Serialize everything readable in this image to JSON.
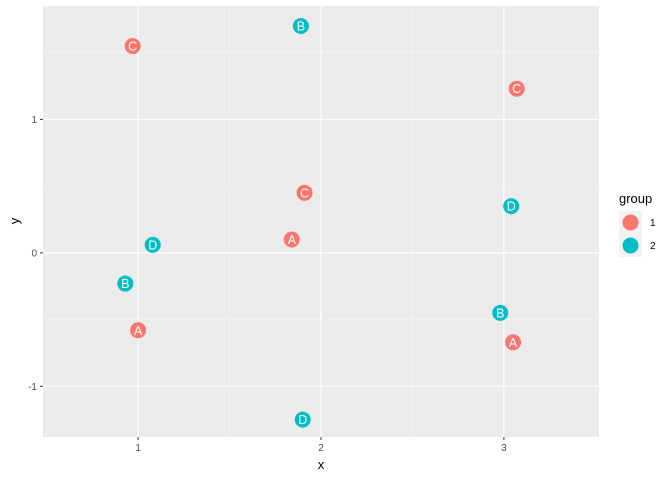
{
  "chart_data": {
    "type": "scatter",
    "xlabel": "x",
    "ylabel": "y",
    "xlim": [
      0.48,
      3.52
    ],
    "ylim": [
      -1.38,
      1.85
    ],
    "x_ticks": [
      1,
      2,
      3
    ],
    "x_tick_labels": [
      "1",
      "2",
      "3"
    ],
    "y_ticks": [
      -1,
      0,
      1
    ],
    "y_tick_labels": [
      "-1",
      "0",
      "1"
    ],
    "grid": true,
    "background": "#ebebeb",
    "legend": {
      "title": "group",
      "placement": "right",
      "entries": [
        {
          "label": "1",
          "color": "#f8766d"
        },
        {
          "label": "2",
          "color": "#00bfc4"
        }
      ]
    },
    "series": [
      {
        "name": "1",
        "color": "#f8766d",
        "points": [
          {
            "x": 0.97,
            "y": 1.55,
            "label": "C"
          },
          {
            "x": 3.07,
            "y": 1.23,
            "label": "C"
          },
          {
            "x": 1.91,
            "y": 0.45,
            "label": "C"
          },
          {
            "x": 1.84,
            "y": 0.1,
            "label": "A"
          },
          {
            "x": 1.0,
            "y": -0.58,
            "label": "A"
          },
          {
            "x": 3.05,
            "y": -0.67,
            "label": "A"
          }
        ]
      },
      {
        "name": "2",
        "color": "#00bfc4",
        "points": [
          {
            "x": 1.89,
            "y": 1.7,
            "label": "B"
          },
          {
            "x": 3.04,
            "y": 0.35,
            "label": "D"
          },
          {
            "x": 1.08,
            "y": 0.06,
            "label": "D"
          },
          {
            "x": 0.93,
            "y": -0.23,
            "label": "B"
          },
          {
            "x": 2.98,
            "y": -0.45,
            "label": "B"
          },
          {
            "x": 1.9,
            "y": -1.25,
            "label": "D"
          }
        ]
      }
    ]
  }
}
